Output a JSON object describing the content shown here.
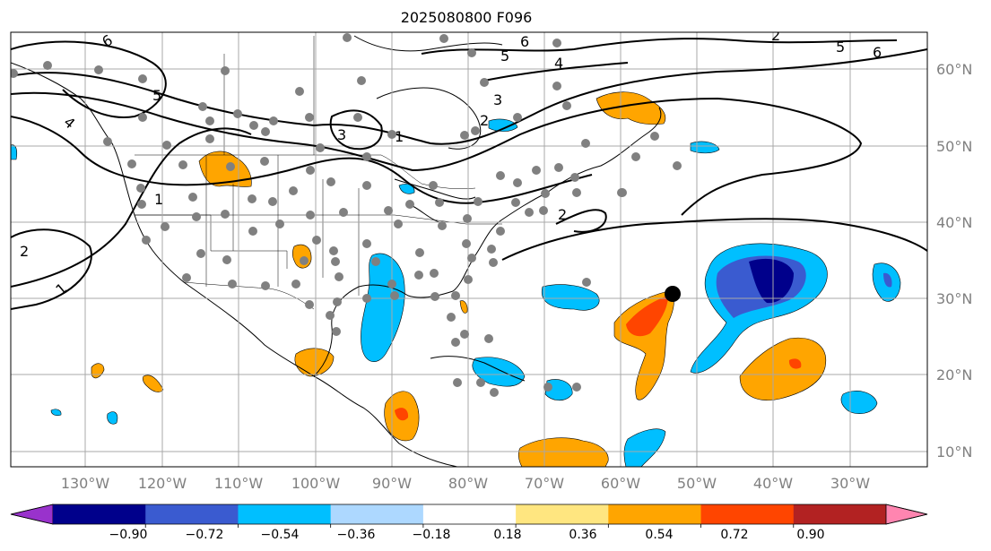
{
  "title": "2025080800 F096",
  "map": {
    "lon_labels": [
      "130°W",
      "120°W",
      "110°W",
      "100°W",
      "90°W",
      "80°W",
      "70°W",
      "60°W",
      "50°W",
      "40°W",
      "30°W"
    ],
    "lat_labels": [
      "60°N",
      "50°N",
      "40°N",
      "30°N",
      "20°N",
      "10°N"
    ],
    "contour_labels": [
      "6",
      "5",
      "4",
      "3",
      "2",
      "1",
      "6",
      "5",
      "4",
      "6",
      "5",
      "3",
      "2",
      "1",
      "2",
      "1",
      "2"
    ],
    "gridlines": true
  },
  "colorbar": {
    "ticks": [
      "−0.90",
      "−0.72",
      "−0.54",
      "−0.36",
      "−0.18",
      "0.18",
      "0.36",
      "0.54",
      "0.72",
      "0.90"
    ],
    "colors": [
      "#9932cc",
      "#00008b",
      "#3a5bd0",
      "#00bfff",
      "#add8ff",
      "#ffffff",
      "#ffe680",
      "#ffa500",
      "#ff4500",
      "#b22222",
      "#ff85b0"
    ],
    "extend": "both"
  },
  "markers": {
    "storm_center_color": "#000000",
    "station_color": "#808080"
  }
}
